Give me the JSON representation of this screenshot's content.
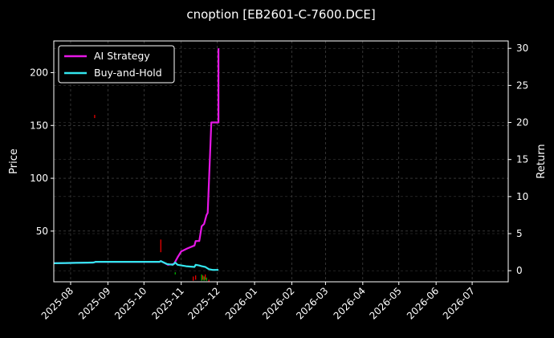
{
  "chart_data": {
    "type": "line",
    "title": "cnoption [EB2601-C-7600.DCE]",
    "xlabel": "",
    "ylabel_left": "Price",
    "ylabel_right": "Return",
    "x_ticks": [
      "2025-08",
      "2025-09",
      "2025-10",
      "2025-11",
      "2025-12",
      "2026-01",
      "2026-02",
      "2026-03",
      "2026-04",
      "2026-05",
      "2026-06",
      "2026-07"
    ],
    "x_range": [
      "2025-07-18",
      "2026-07-31"
    ],
    "y_left_ticks": [
      50,
      100,
      150,
      200
    ],
    "y_left_range": [
      2,
      230
    ],
    "y_right_ticks": [
      0,
      5,
      10,
      15,
      20,
      25,
      30
    ],
    "y_right_range": [
      -1.5,
      31
    ],
    "grid": true,
    "legend_position": "top-left",
    "series": [
      {
        "name": "AI Strategy",
        "axis": "right",
        "color": "#e617e6",
        "points": [
          [
            "2025-07-18",
            1.0
          ],
          [
            "2025-08-20",
            1.1
          ],
          [
            "2025-08-22",
            1.2
          ],
          [
            "2025-09-01",
            1.2
          ],
          [
            "2025-10-14",
            1.2
          ],
          [
            "2025-10-15",
            1.3
          ],
          [
            "2025-10-21",
            0.8
          ],
          [
            "2025-10-26",
            0.9
          ],
          [
            "2025-10-29",
            1.8
          ],
          [
            "2025-11-01",
            2.6
          ],
          [
            "2025-11-06",
            3.0
          ],
          [
            "2025-11-12",
            3.4
          ],
          [
            "2025-11-13",
            4.0
          ],
          [
            "2025-11-16",
            4.0
          ],
          [
            "2025-11-18",
            6.0
          ],
          [
            "2025-11-20",
            6.3
          ],
          [
            "2025-11-22",
            7.5
          ],
          [
            "2025-11-23",
            7.8
          ],
          [
            "2025-11-26",
            20.0
          ],
          [
            "2025-12-02",
            20.0
          ],
          [
            "2025-12-02",
            30.0
          ]
        ]
      },
      {
        "name": "Buy-and-Hold",
        "axis": "right",
        "color": "#33e6ee",
        "points": [
          [
            "2025-07-18",
            1.0
          ],
          [
            "2025-08-20",
            1.1
          ],
          [
            "2025-08-22",
            1.2
          ],
          [
            "2025-09-01",
            1.2
          ],
          [
            "2025-10-14",
            1.2
          ],
          [
            "2025-10-15",
            1.3
          ],
          [
            "2025-10-20",
            0.9
          ],
          [
            "2025-10-25",
            0.8
          ],
          [
            "2025-10-27",
            1.1
          ],
          [
            "2025-10-29",
            0.8
          ],
          [
            "2025-11-05",
            0.6
          ],
          [
            "2025-11-12",
            0.5
          ],
          [
            "2025-11-13",
            0.8
          ],
          [
            "2025-11-16",
            0.7
          ],
          [
            "2025-11-18",
            0.6
          ],
          [
            "2025-11-21",
            0.5
          ],
          [
            "2025-11-24",
            0.2
          ],
          [
            "2025-11-27",
            0.1
          ],
          [
            "2025-12-02",
            0.1
          ]
        ]
      }
    ],
    "candles": [
      {
        "x": "2025-08-21",
        "low": 157,
        "high": 160,
        "color": "#ff0000"
      },
      {
        "x": "2025-10-15",
        "low": 30,
        "high": 42,
        "color": "#ff0000"
      },
      {
        "x": "2025-10-27",
        "low": 9,
        "high": 11,
        "color": "#00cc00"
      },
      {
        "x": "2025-11-11",
        "low": 3,
        "high": 7,
        "color": "#ff0000"
      },
      {
        "x": "2025-11-13",
        "low": 4,
        "high": 8,
        "color": "#ff0000"
      },
      {
        "x": "2025-11-18",
        "low": 3,
        "high": 9,
        "color": "#00cc00"
      },
      {
        "x": "2025-11-19",
        "low": 4,
        "high": 8,
        "color": "#ff0000"
      },
      {
        "x": "2025-11-20",
        "low": 3,
        "high": 7,
        "color": "#00cc00"
      },
      {
        "x": "2025-11-21",
        "low": 4,
        "high": 9,
        "color": "#ff0000"
      },
      {
        "x": "2025-11-22",
        "low": 3,
        "high": 6,
        "color": "#00cc00"
      },
      {
        "x": "2025-11-24",
        "low": 2,
        "high": 4,
        "color": "#ff0000"
      }
    ]
  }
}
